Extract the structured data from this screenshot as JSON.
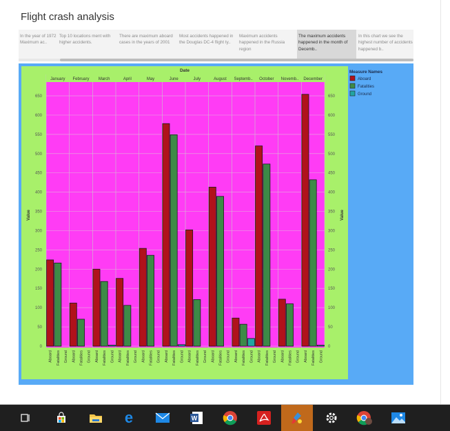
{
  "title": "Flight crash analysis",
  "story_points": [
    {
      "text": "In the year of 1972 Maximum ac.."
    },
    {
      "text": "Top 10 locations  ment with higher accidents."
    },
    {
      "text": "There are maximum aboard cases in the years of 2001"
    },
    {
      "text": "Most accidents happened in the Douglas DC-4 flight ty.."
    },
    {
      "text": "Maximum accidents happened  in the Russia region"
    },
    {
      "text": "The maximum accidents happened in the month of Decemb..",
      "active": true
    },
    {
      "text": "In this chart we see the highest number of accidents happened b.."
    }
  ],
  "legend": {
    "title": "Measure Names",
    "items": [
      {
        "label": "Aboard",
        "color": "#b0121b"
      },
      {
        "label": "Fatalities",
        "color": "#3d8a47"
      },
      {
        "label": "Ground",
        "color": "#22a5a2"
      }
    ]
  },
  "chart_data": {
    "type": "bar",
    "xlabel_top": "Date",
    "ylabel": "Value",
    "ylabel_right": "Value",
    "ylim": [
      0,
      650
    ],
    "yticks": [
      0,
      50,
      100,
      150,
      200,
      250,
      300,
      350,
      400,
      450,
      500,
      550,
      600,
      650
    ],
    "categories": [
      "January",
      "February",
      "March",
      "April",
      "May",
      "June",
      "July",
      "August",
      "Septemb..",
      "October",
      "Novemb..",
      "December"
    ],
    "measures": [
      "Aboard",
      "Fatalities",
      "Ground"
    ],
    "series": [
      {
        "name": "Aboard",
        "values": [
          224,
          112,
          200,
          176,
          254,
          578,
          302,
          413,
          73,
          520,
          122,
          654
        ]
      },
      {
        "name": "Fatalities",
        "values": [
          216,
          70,
          168,
          106,
          236,
          549,
          121,
          389,
          57,
          473,
          110,
          432
        ]
      },
      {
        "name": "Ground",
        "values": [
          0,
          0,
          1,
          0,
          0,
          4,
          0,
          0,
          20,
          0,
          0,
          1
        ]
      }
    ],
    "grid": true,
    "legend_position": "right",
    "colors": {
      "panel": "#58aaf6",
      "frame": "#a8f06a",
      "plot": "#ff3cf5"
    }
  },
  "taskbar": [
    {
      "icon": "task-view-icon"
    },
    {
      "icon": "store-icon"
    },
    {
      "icon": "file-explorer-icon"
    },
    {
      "icon": "edge-icon"
    },
    {
      "icon": "mail-icon"
    },
    {
      "icon": "word-icon"
    },
    {
      "icon": "chrome-icon"
    },
    {
      "icon": "acrobat-icon"
    },
    {
      "icon": "paint-icon"
    },
    {
      "icon": "settings-icon"
    },
    {
      "icon": "chrome-profile-icon"
    },
    {
      "icon": "photos-icon"
    }
  ]
}
